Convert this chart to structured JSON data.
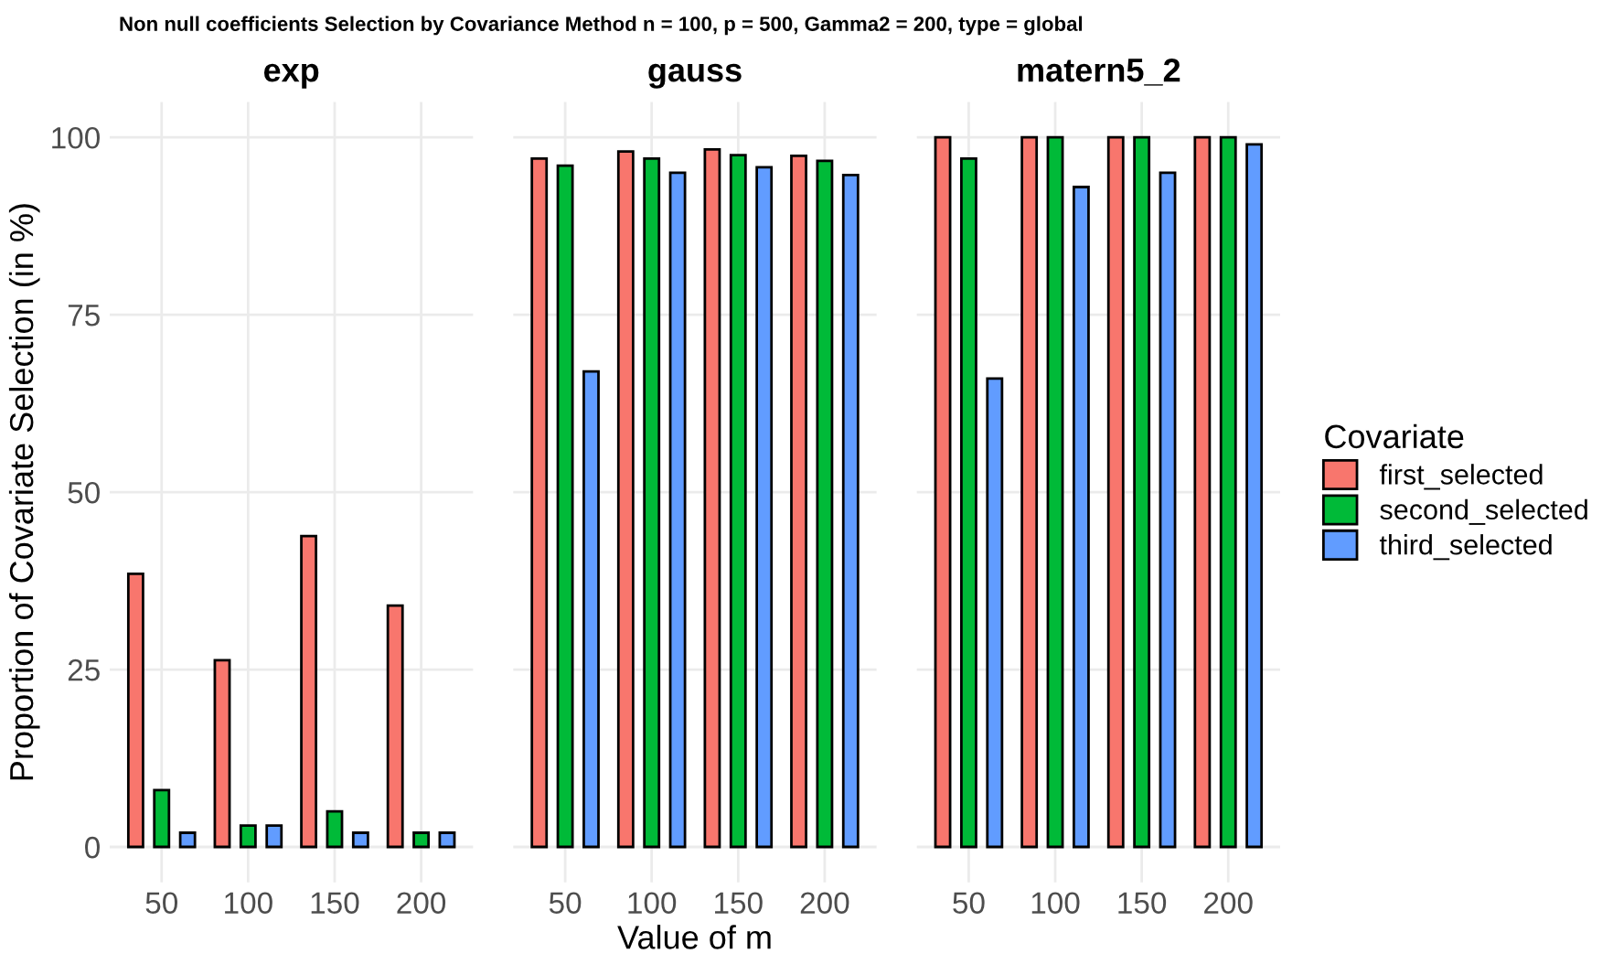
{
  "chart_data": [
    {
      "type": "bar",
      "title": "Non null coefficients Selection by Covariance Method n = 100, p = 500, Gamma2 = 200, type = global",
      "subtitle": "exp",
      "ylabel": "Proportion of Covariate Selection (in %)",
      "categories": [
        "50",
        "100",
        "150",
        "200"
      ],
      "ylim": [
        -5,
        105
      ],
      "yticks": [
        0,
        25,
        50,
        75,
        100
      ],
      "grid": true,
      "series": [
        {
          "color": "#f8766d",
          "values": [
            38.5,
            26.3,
            43.8,
            34
          ]
        },
        {
          "color": "#00ba38",
          "values": [
            8,
            3,
            5,
            2
          ]
        },
        {
          "color": "#619cff",
          "values": [
            2,
            3,
            2,
            2
          ]
        }
      ]
    },
    {
      "type": "bar",
      "subtitle": "gauss",
      "xlabel": "Value of m",
      "categories": [
        "50",
        "100",
        "150",
        "200"
      ],
      "ylim": [
        -5,
        105
      ],
      "yticks": [
        0,
        25,
        50,
        75,
        100
      ],
      "tick_labels": "x",
      "grid": true,
      "series": [
        {
          "color": "#f8766d",
          "values": [
            97,
            98,
            98.3,
            97.4
          ]
        },
        {
          "color": "#00ba38",
          "values": [
            96,
            97,
            97.5,
            96.7
          ]
        },
        {
          "color": "#619cff",
          "values": [
            67,
            95,
            95.8,
            94.7
          ]
        }
      ]
    },
    {
      "type": "bar",
      "subtitle": "matern5_2",
      "categories": [
        "50",
        "100",
        "150",
        "200"
      ],
      "ylim": [
        -5,
        105
      ],
      "yticks": [
        0,
        25,
        50,
        75,
        100
      ],
      "tick_labels": "x",
      "grid": true,
      "legend": "right",
      "legend_title": "Covariate",
      "series": [
        {
          "name": "first_selected",
          "color": "#f8766d",
          "values": [
            100,
            100,
            100,
            100
          ]
        },
        {
          "name": "second_selected",
          "color": "#00ba38",
          "values": [
            97,
            100,
            100,
            100
          ]
        },
        {
          "name": "third_selected",
          "color": "#619cff",
          "values": [
            66,
            93,
            95,
            99
          ]
        }
      ]
    }
  ]
}
